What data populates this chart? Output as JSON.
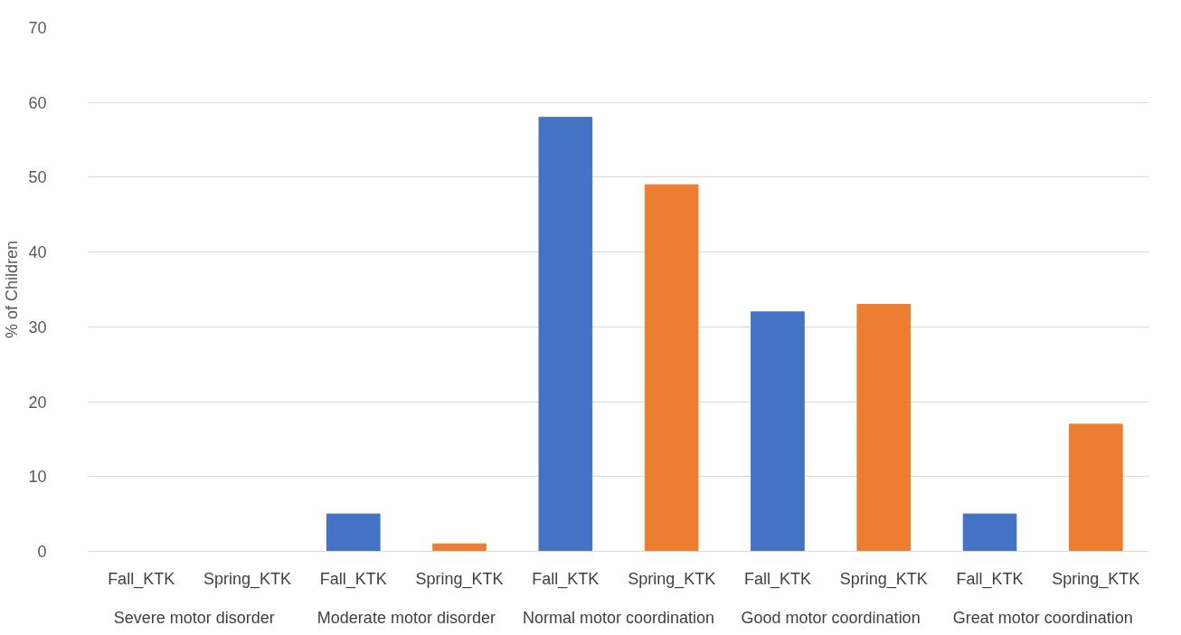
{
  "chart_data": {
    "type": "bar",
    "ylabel": "% of Children",
    "categories": [
      "Fall_KTK",
      "Spring_KTK",
      "Fall_KTK",
      "Spring_KTK",
      "Fall_KTK",
      "Spring_KTK",
      "Fall_KTK",
      "Spring_KTK",
      "Fall_KTK",
      "Spring_KTK"
    ],
    "values": [
      0,
      0,
      5,
      1,
      58,
      49,
      32,
      33,
      5,
      17
    ],
    "colors": [
      "#4472c4",
      "#ed7d31",
      "#4472c4",
      "#ed7d31",
      "#4472c4",
      "#ed7d31",
      "#4472c4",
      "#ed7d31",
      "#4472c4",
      "#ed7d31"
    ],
    "annotations": [
      "Severe motor disorder",
      "Moderate motor disorder",
      "Normal motor coordination",
      "Good motor coordination",
      "Great motor coordination"
    ],
    "ylim": [
      0,
      70
    ],
    "yticks": [
      0,
      10,
      20,
      30,
      40,
      50,
      60,
      70
    ],
    "grid": "y"
  }
}
